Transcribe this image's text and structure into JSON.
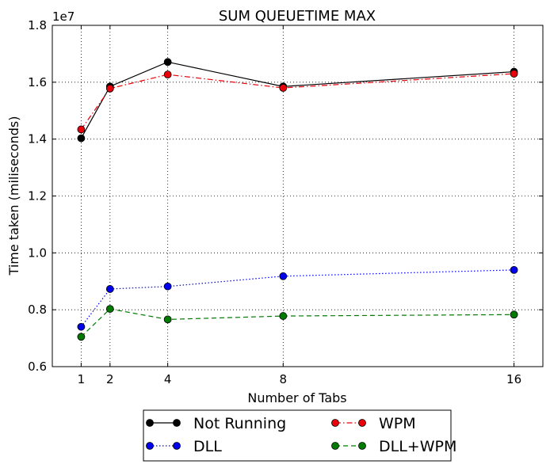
{
  "chart_data": {
    "type": "line",
    "title": "SUM QUEUETIME MAX",
    "xlabel": "Number of Tabs",
    "ylabel": "Time taken (miliseconds)",
    "y_scale_label": "1e7",
    "x": [
      1,
      2,
      4,
      8,
      16
    ],
    "x_tick_labels": [
      "1",
      "2",
      "4",
      "8",
      "16"
    ],
    "xlim": [
      0,
      17
    ],
    "ylim": [
      0.6,
      1.8
    ],
    "y_tick_values": [
      0.6,
      0.8,
      1.0,
      1.2,
      1.4,
      1.6,
      1.8
    ],
    "y_tick_labels": [
      "0.6",
      "0.8",
      "1.0",
      "1.2",
      "1.4",
      "1.6",
      "1.8"
    ],
    "grid": true,
    "legend_position": "bottom-center",
    "series": [
      {
        "name": "Not Running",
        "color": "#000000",
        "line_style": "solid",
        "marker": "circle",
        "values": [
          1.403,
          1.585,
          1.671,
          1.585,
          1.637
        ]
      },
      {
        "name": "WPM",
        "color": "#e8000b",
        "line_style": "dashdot",
        "marker": "circle",
        "values": [
          1.434,
          1.578,
          1.627,
          1.58,
          1.63
        ]
      },
      {
        "name": "DLL",
        "color": "#0000ee",
        "line_style": "dotted",
        "marker": "circle",
        "values": [
          0.74,
          0.873,
          0.882,
          0.918,
          0.94
        ]
      },
      {
        "name": "DLL+WPM",
        "color": "#007a00",
        "line_style": "dashed",
        "marker": "circle",
        "values": [
          0.705,
          0.803,
          0.766,
          0.778,
          0.783
        ]
      }
    ]
  }
}
